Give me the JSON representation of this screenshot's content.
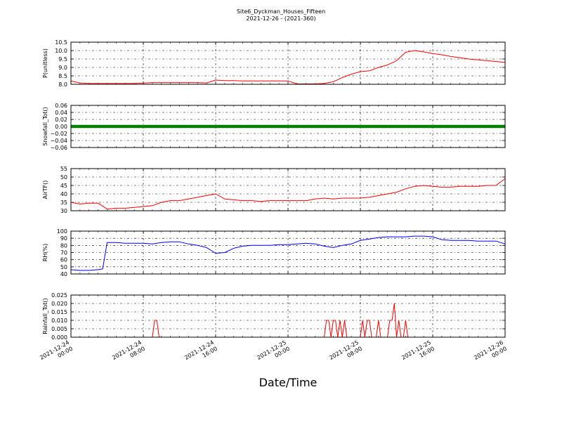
{
  "title": "Site6_Dyckman_Houses_Fifteen",
  "subtitle": "2021-12-26 - (2021-360)",
  "xlabel": "Date/Time",
  "x_ticks": [
    {
      "label": "2021-12-24 00:00",
      "line1": "2021-12-24",
      "line2": "00:00"
    },
    {
      "label": "2021-12-24 08:00",
      "line1": "2021-12-24",
      "line2": "08:00"
    },
    {
      "label": "2021-12-24 16:00",
      "line1": "2021-12-24",
      "line2": "16:00"
    },
    {
      "label": "2021-12-25 00:00",
      "line1": "2021-12-25",
      "line2": "00:00"
    },
    {
      "label": "2021-12-25 08:00",
      "line1": "2021-12-25",
      "line2": "08:00"
    },
    {
      "label": "2021-12-25 16:00",
      "line1": "2021-12-25",
      "line2": "16:00"
    },
    {
      "label": "2021-12-26 00:00",
      "line1": "2021-12-26",
      "line2": "00:00"
    }
  ],
  "chart_data": [
    {
      "type": "line",
      "ylabel": "P(unitless)",
      "color": "#ff0000",
      "ylim": [
        8.0,
        10.5
      ],
      "yticks": [
        "8.0",
        "8.5",
        "9.0",
        "9.5",
        "10.0",
        "10.5"
      ],
      "xlim": [
        "2021-12-24 00:00",
        "2021-12-26 00:00"
      ],
      "grid": true,
      "x": [
        "2021-12-24 00:00",
        "2021-12-24 01:00",
        "2021-12-24 02:00",
        "2021-12-24 03:00",
        "2021-12-24 04:00",
        "2021-12-24 05:00",
        "2021-12-24 06:00",
        "2021-12-24 07:00",
        "2021-12-24 08:00",
        "2021-12-24 09:00",
        "2021-12-24 10:00",
        "2021-12-24 11:00",
        "2021-12-24 12:00",
        "2021-12-24 13:00",
        "2021-12-24 14:00",
        "2021-12-24 15:00",
        "2021-12-24 16:00",
        "2021-12-24 17:00",
        "2021-12-24 18:00",
        "2021-12-24 19:00",
        "2021-12-24 20:00",
        "2021-12-24 21:00",
        "2021-12-24 22:00",
        "2021-12-24 23:00",
        "2021-12-25 00:00",
        "2021-12-25 01:00",
        "2021-12-25 02:00",
        "2021-12-25 03:00",
        "2021-12-25 04:00",
        "2021-12-25 05:00",
        "2021-12-25 06:00",
        "2021-12-25 07:00",
        "2021-12-25 08:00",
        "2021-12-25 09:00",
        "2021-12-25 10:00",
        "2021-12-25 11:00",
        "2021-12-25 12:00",
        "2021-12-25 13:00",
        "2021-12-25 14:00",
        "2021-12-25 15:00",
        "2021-12-25 16:00",
        "2021-12-25 17:00",
        "2021-12-25 18:00",
        "2021-12-25 19:00",
        "2021-12-25 20:00",
        "2021-12-25 21:00",
        "2021-12-25 22:00",
        "2021-12-25 23:00",
        "2021-12-26 00:00"
      ],
      "y": [
        8.2,
        8.08,
        8.05,
        8.05,
        8.05,
        8.05,
        8.05,
        8.05,
        8.07,
        8.1,
        8.1,
        8.1,
        8.1,
        8.1,
        8.1,
        8.08,
        8.25,
        8.22,
        8.22,
        8.2,
        8.2,
        8.2,
        8.2,
        8.2,
        8.2,
        8.02,
        8.02,
        8.02,
        8.05,
        8.15,
        8.4,
        8.6,
        8.75,
        8.8,
        9.0,
        9.15,
        9.4,
        9.9,
        10.0,
        9.92,
        9.82,
        9.75,
        9.65,
        9.58,
        9.5,
        9.45,
        9.4,
        9.35,
        9.3
      ]
    },
    {
      "type": "line",
      "ylabel": "Snowfall_Tot()",
      "color": "#008000",
      "ylim": [
        -0.06,
        0.06
      ],
      "yticks": [
        "−0.06",
        "−0.04",
        "−0.02",
        "0.00",
        "0.02",
        "0.04",
        "0.06"
      ],
      "xlim": [
        "2021-12-24 00:00",
        "2021-12-26 00:00"
      ],
      "grid": true,
      "x": [
        "2021-12-24 00:00",
        "2021-12-26 00:00"
      ],
      "y": [
        0.0,
        0.0
      ]
    },
    {
      "type": "line",
      "ylabel": "AirTF()",
      "color": "#ff0000",
      "ylim": [
        30,
        55
      ],
      "yticks": [
        "30",
        "35",
        "40",
        "45",
        "50",
        "55"
      ],
      "xlim": [
        "2021-12-24 00:00",
        "2021-12-26 00:00"
      ],
      "grid": true,
      "x": [
        "2021-12-24 00:00",
        "2021-12-24 01:00",
        "2021-12-24 02:00",
        "2021-12-24 03:00",
        "2021-12-24 04:00",
        "2021-12-24 05:00",
        "2021-12-24 06:00",
        "2021-12-24 07:00",
        "2021-12-24 08:00",
        "2021-12-24 09:00",
        "2021-12-24 10:00",
        "2021-12-24 11:00",
        "2021-12-24 12:00",
        "2021-12-24 13:00",
        "2021-12-24 14:00",
        "2021-12-24 15:00",
        "2021-12-24 16:00",
        "2021-12-24 17:00",
        "2021-12-24 18:00",
        "2021-12-24 19:00",
        "2021-12-24 20:00",
        "2021-12-24 21:00",
        "2021-12-24 22:00",
        "2021-12-24 23:00",
        "2021-12-25 00:00",
        "2021-12-25 01:00",
        "2021-12-25 02:00",
        "2021-12-25 03:00",
        "2021-12-25 04:00",
        "2021-12-25 05:00",
        "2021-12-25 06:00",
        "2021-12-25 07:00",
        "2021-12-25 08:00",
        "2021-12-25 09:00",
        "2021-12-25 10:00",
        "2021-12-25 11:00",
        "2021-12-25 12:00",
        "2021-12-25 13:00",
        "2021-12-25 14:00",
        "2021-12-25 15:00",
        "2021-12-25 16:00",
        "2021-12-25 17:00",
        "2021-12-25 18:00",
        "2021-12-25 19:00",
        "2021-12-25 20:00",
        "2021-12-25 21:00",
        "2021-12-25 22:00",
        "2021-12-25 23:00",
        "2021-12-26 00:00"
      ],
      "y": [
        35,
        34,
        34.5,
        34.5,
        31,
        31.5,
        31.5,
        32,
        32.5,
        33,
        35,
        36,
        36,
        37,
        38,
        39,
        40,
        37,
        36.5,
        36,
        36,
        35.5,
        36,
        36,
        36,
        36,
        36,
        37,
        37.5,
        37,
        37.5,
        37.5,
        37.5,
        38,
        39,
        40,
        41,
        43,
        44.5,
        45,
        44.5,
        44,
        44,
        44.5,
        44.5,
        44.5,
        45,
        45,
        49
      ]
    },
    {
      "type": "line",
      "ylabel": "RH(%)",
      "color": "#0000ff",
      "ylim": [
        40,
        100
      ],
      "yticks": [
        "40",
        "50",
        "60",
        "70",
        "80",
        "90",
        "100"
      ],
      "xlim": [
        "2021-12-24 00:00",
        "2021-12-26 00:00"
      ],
      "grid": true,
      "x": [
        "2021-12-24 00:00",
        "2021-12-24 01:00",
        "2021-12-24 02:00",
        "2021-12-24 03:00",
        "2021-12-24 03:30",
        "2021-12-24 04:00",
        "2021-12-24 05:00",
        "2021-12-24 06:00",
        "2021-12-24 07:00",
        "2021-12-24 08:00",
        "2021-12-24 09:00",
        "2021-12-24 10:00",
        "2021-12-24 11:00",
        "2021-12-24 12:00",
        "2021-12-24 13:00",
        "2021-12-24 14:00",
        "2021-12-24 15:00",
        "2021-12-24 16:00",
        "2021-12-24 17:00",
        "2021-12-24 18:00",
        "2021-12-24 19:00",
        "2021-12-24 20:00",
        "2021-12-24 21:00",
        "2021-12-24 22:00",
        "2021-12-24 23:00",
        "2021-12-25 00:00",
        "2021-12-25 01:00",
        "2021-12-25 02:00",
        "2021-12-25 03:00",
        "2021-12-25 04:00",
        "2021-12-25 05:00",
        "2021-12-25 06:00",
        "2021-12-25 07:00",
        "2021-12-25 08:00",
        "2021-12-25 09:00",
        "2021-12-25 10:00",
        "2021-12-25 11:00",
        "2021-12-25 12:00",
        "2021-12-25 13:00",
        "2021-12-25 14:00",
        "2021-12-25 15:00",
        "2021-12-25 16:00",
        "2021-12-25 17:00",
        "2021-12-25 18:00",
        "2021-12-25 19:00",
        "2021-12-25 20:00",
        "2021-12-25 21:00",
        "2021-12-25 22:00",
        "2021-12-25 23:00",
        "2021-12-26 00:00"
      ],
      "y": [
        46,
        45,
        45,
        46,
        47,
        84,
        84,
        83,
        83,
        83,
        82,
        84,
        85,
        85,
        82,
        80,
        77,
        69,
        70,
        76,
        79,
        80,
        80,
        80,
        81,
        81,
        82,
        83,
        82,
        79,
        77,
        80,
        82,
        87,
        89,
        91,
        92,
        92,
        92,
        93,
        93,
        92,
        88,
        87,
        87,
        87,
        86,
        86,
        86,
        82
      ]
    },
    {
      "type": "line",
      "ylabel": "Rainfall_Tot()",
      "color": "#ff0000",
      "ylim": [
        0.0,
        0.025
      ],
      "yticks": [
        "0.000",
        "0.005",
        "0.010",
        "0.015",
        "0.020",
        "0.025"
      ],
      "xlim": [
        "2021-12-24 00:00",
        "2021-12-26 00:00"
      ],
      "grid": true,
      "x": [
        "2021-12-24 00:00",
        "2021-12-24 09:00",
        "2021-12-24 09:15",
        "2021-12-24 09:30",
        "2021-12-24 09:45",
        "2021-12-25 04:00",
        "2021-12-25 04:15",
        "2021-12-25 04:30",
        "2021-12-25 04:45",
        "2021-12-25 05:00",
        "2021-12-25 05:15",
        "2021-12-25 05:30",
        "2021-12-25 05:45",
        "2021-12-25 06:00",
        "2021-12-25 06:15",
        "2021-12-25 06:30",
        "2021-12-25 08:00",
        "2021-12-25 08:15",
        "2021-12-25 08:30",
        "2021-12-25 08:45",
        "2021-12-25 09:00",
        "2021-12-25 09:15",
        "2021-12-25 09:45",
        "2021-12-25 10:00",
        "2021-12-25 10:15",
        "2021-12-25 11:00",
        "2021-12-25 11:15",
        "2021-12-25 11:30",
        "2021-12-25 11:45",
        "2021-12-25 12:00",
        "2021-12-25 12:15",
        "2021-12-25 12:30",
        "2021-12-25 12:45",
        "2021-12-25 13:00",
        "2021-12-25 13:15",
        "2021-12-25 13:30",
        "2021-12-26 00:00"
      ],
      "y": [
        0,
        0,
        0.01,
        0.01,
        0,
        0,
        0.01,
        0.01,
        0,
        0.01,
        0.01,
        0,
        0.01,
        0,
        0.01,
        0,
        0,
        0.01,
        0,
        0.01,
        0.01,
        0,
        0,
        0.01,
        0,
        0,
        0.01,
        0.01,
        0.02,
        0,
        0.01,
        0,
        0,
        0.01,
        0,
        0,
        0
      ]
    }
  ]
}
